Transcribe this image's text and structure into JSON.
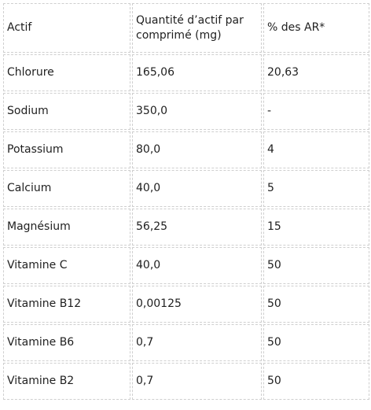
{
  "table": {
    "headers": [
      "Actif",
      "Quantité d’actif par comprimé (mg)",
      "% des AR*"
    ],
    "rows": [
      [
        "Chlorure",
        "165,06",
        "20,63"
      ],
      [
        "Sodium",
        "350,0",
        "-"
      ],
      [
        "Potassium",
        "80,0",
        "4"
      ],
      [
        "Calcium",
        "40,0",
        "5"
      ],
      [
        "Magnésium",
        "56,25",
        "15"
      ],
      [
        "Vitamine C",
        "40,0",
        "50"
      ],
      [
        "Vitamine B12",
        "0,00125",
        "50"
      ],
      [
        "Vitamine B6",
        "0,7",
        "50"
      ],
      [
        "Vitamine B2",
        "0,7",
        "50"
      ]
    ]
  }
}
